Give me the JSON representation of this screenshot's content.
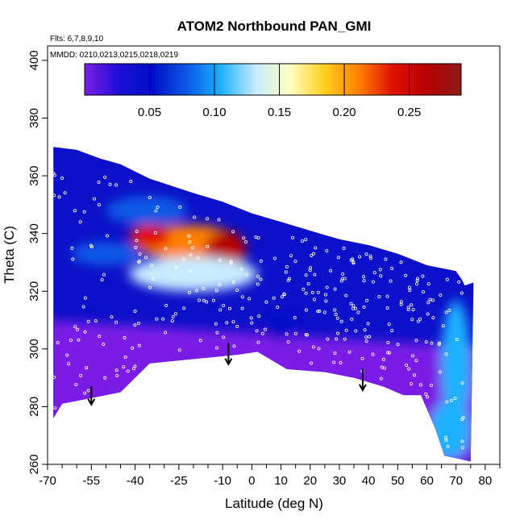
{
  "chart_data": {
    "type": "heatmap",
    "title": "ATOM2 Northbound PAN_GMI",
    "flights_note": "Flts: 6,7,8,9,10",
    "dates_note": "MMDD: 0210,0213,0215,0218,0219",
    "xlabel": "Latitude (deg N)",
    "ylabel": "Theta (C)",
    "xlim": [
      -70,
      85
    ],
    "ylim": [
      260,
      405
    ],
    "x_ticks": [
      -70,
      -55,
      -40,
      -25,
      -10,
      0,
      10,
      20,
      30,
      40,
      50,
      60,
      70,
      80
    ],
    "x_tick_labels": [
      "-70",
      "-55",
      "-40",
      "-25",
      "-10",
      "0",
      "10",
      "20",
      "30",
      "40",
      "50",
      "60",
      "70",
      "80"
    ],
    "x_minor_ticks": [
      -65,
      -60,
      -50,
      -45,
      -35,
      -30,
      -20,
      -15,
      -5,
      5,
      15,
      25,
      35,
      45,
      55,
      65,
      75,
      85
    ],
    "y_ticks": [
      260,
      280,
      300,
      320,
      340,
      360,
      380,
      400
    ],
    "y_tick_labels": [
      "260",
      "280",
      "300",
      "320",
      "340",
      "360",
      "380",
      "400"
    ],
    "colorbar": {
      "range": [
        0.0,
        0.29
      ],
      "ticks": [
        0.05,
        0.1,
        0.15,
        0.2,
        0.25
      ],
      "tick_labels": [
        "0.05",
        "0.10",
        "0.15",
        "0.20",
        "0.25"
      ],
      "colors": [
        "#7a1ee6",
        "#1e0ed6",
        "#0010c8",
        "#0a5ae6",
        "#1fb2ff",
        "#c8ecff",
        "#ffffc0",
        "#ffd020",
        "#ff8000",
        "#e01000",
        "#b80000",
        "#8c1c1c"
      ]
    },
    "domain_top": [
      [
        -68,
        370
      ],
      [
        -60,
        369
      ],
      [
        -52,
        366
      ],
      [
        -45,
        364
      ],
      [
        -35,
        359
      ],
      [
        -20,
        354
      ],
      [
        -10,
        351
      ],
      [
        0,
        347
      ],
      [
        10,
        344
      ],
      [
        20,
        341
      ],
      [
        30,
        338
      ],
      [
        40,
        336
      ],
      [
        50,
        333
      ],
      [
        60,
        329
      ],
      [
        70,
        327
      ],
      [
        72,
        324
      ],
      [
        73,
        322
      ]
    ],
    "domain_bottom": [
      [
        -68,
        276
      ],
      [
        -65,
        281
      ],
      [
        -55,
        283
      ],
      [
        -45,
        285
      ],
      [
        -35,
        295
      ],
      [
        -25,
        296
      ],
      [
        -15,
        297
      ],
      [
        -5,
        298
      ],
      [
        2,
        299
      ],
      [
        12,
        293
      ],
      [
        25,
        292
      ],
      [
        35,
        290
      ],
      [
        45,
        287
      ],
      [
        52,
        284
      ],
      [
        58,
        284
      ],
      [
        63,
        272
      ],
      [
        66,
        263
      ],
      [
        75,
        261
      ]
    ],
    "features": [
      {
        "kind": "low_purple_layer",
        "y_top_left": 310,
        "y_top_right": 300,
        "value": 0.005
      },
      {
        "kind": "blob",
        "x": -22,
        "y": 337,
        "rx": 18,
        "ry": 6,
        "value": 0.22
      },
      {
        "kind": "blob",
        "x": -35,
        "y": 339,
        "rx": 7,
        "ry": 4,
        "value": 0.24
      },
      {
        "kind": "blob",
        "x": -9,
        "y": 334,
        "rx": 7,
        "ry": 7,
        "value": 0.26
      },
      {
        "kind": "blob",
        "x": -20,
        "y": 326,
        "rx": 22,
        "ry": 6,
        "value": 0.12
      },
      {
        "kind": "blob",
        "x": -50,
        "y": 333,
        "rx": 12,
        "ry": 4,
        "value": 0.07
      },
      {
        "kind": "blob",
        "x": -36,
        "y": 348,
        "rx": 14,
        "ry": 5,
        "value": 0.08
      },
      {
        "kind": "blob",
        "x": 70,
        "y": 295,
        "rx": 5,
        "ry": 22,
        "value": 0.1
      },
      {
        "kind": "blob",
        "x": 68,
        "y": 272,
        "rx": 7,
        "ry": 10,
        "value": 0.1
      },
      {
        "kind": "blob",
        "x": 10,
        "y": 308,
        "rx": 6,
        "ry": 5,
        "value": 0.06
      }
    ],
    "arrows": [
      {
        "x": -55,
        "y_from": 287,
        "y_to": 281
      },
      {
        "x": -8,
        "y_from": 302,
        "y_to": 295
      },
      {
        "x": 38,
        "y_from": 293,
        "y_to": 286
      }
    ],
    "grid": false,
    "legend": "colorbar top"
  }
}
